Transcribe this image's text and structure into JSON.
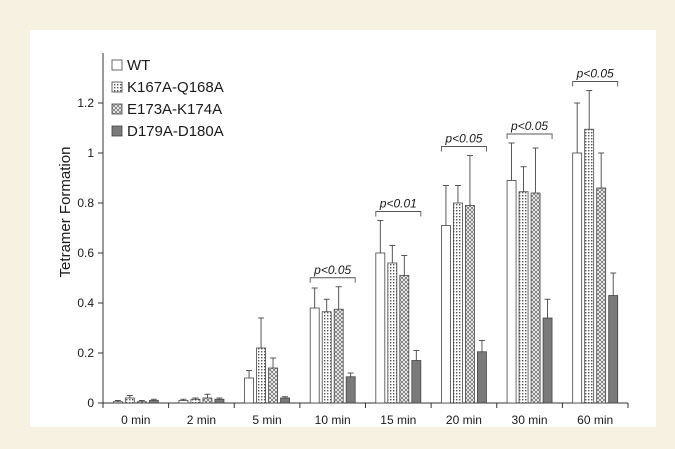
{
  "chart_data": {
    "type": "bar",
    "ylabel": "Tetramer Formation",
    "ylim": [
      0,
      1.4
    ],
    "yticks": [
      "0",
      "0.2",
      "0.4",
      "0.6",
      "0.8",
      "1",
      "1.2"
    ],
    "ytick_values": [
      0,
      0.2,
      0.4,
      0.6,
      0.8,
      1.0,
      1.2
    ],
    "categories": [
      "0 min",
      "2 min",
      "5 min",
      "10 min",
      "15 min",
      "20 min",
      "30 min",
      "60 min"
    ],
    "legend_position": "top-left",
    "series": [
      {
        "name": "WT",
        "pattern": "plain",
        "values": [
          0.005,
          0.01,
          0.1,
          0.38,
          0.6,
          0.71,
          0.89,
          1.0
        ],
        "errors": [
          0.005,
          0.005,
          0.03,
          0.08,
          0.13,
          0.16,
          0.15,
          0.2
        ]
      },
      {
        "name": "K167A-Q168A",
        "pattern": "grid",
        "values": [
          0.02,
          0.015,
          0.22,
          0.365,
          0.56,
          0.8,
          0.845,
          1.095
        ],
        "errors": [
          0.01,
          0.005,
          0.12,
          0.05,
          0.07,
          0.07,
          0.1,
          0.155
        ]
      },
      {
        "name": "E173A-K174A",
        "pattern": "check",
        "values": [
          0.005,
          0.02,
          0.14,
          0.375,
          0.51,
          0.79,
          0.84,
          0.86
        ],
        "errors": [
          0.005,
          0.015,
          0.04,
          0.09,
          0.08,
          0.2,
          0.18,
          0.14
        ]
      },
      {
        "name": "D179A-D180A",
        "pattern": "solid",
        "values": [
          0.01,
          0.015,
          0.02,
          0.105,
          0.17,
          0.205,
          0.34,
          0.43
        ],
        "errors": [
          0.005,
          0.005,
          0.005,
          0.015,
          0.04,
          0.045,
          0.075,
          0.09
        ]
      }
    ],
    "annotations": [
      {
        "category": "10 min",
        "text": "p<0.05"
      },
      {
        "category": "15 min",
        "text": "p<0.01"
      },
      {
        "category": "20 min",
        "text": "p<0.05"
      },
      {
        "category": "30 min",
        "text": "p<0.05"
      },
      {
        "category": "60 min",
        "text": "p<0.05"
      }
    ],
    "colors": {
      "solid": "#7a7a7a",
      "edge": "#444444",
      "pattern": "#555555"
    }
  }
}
